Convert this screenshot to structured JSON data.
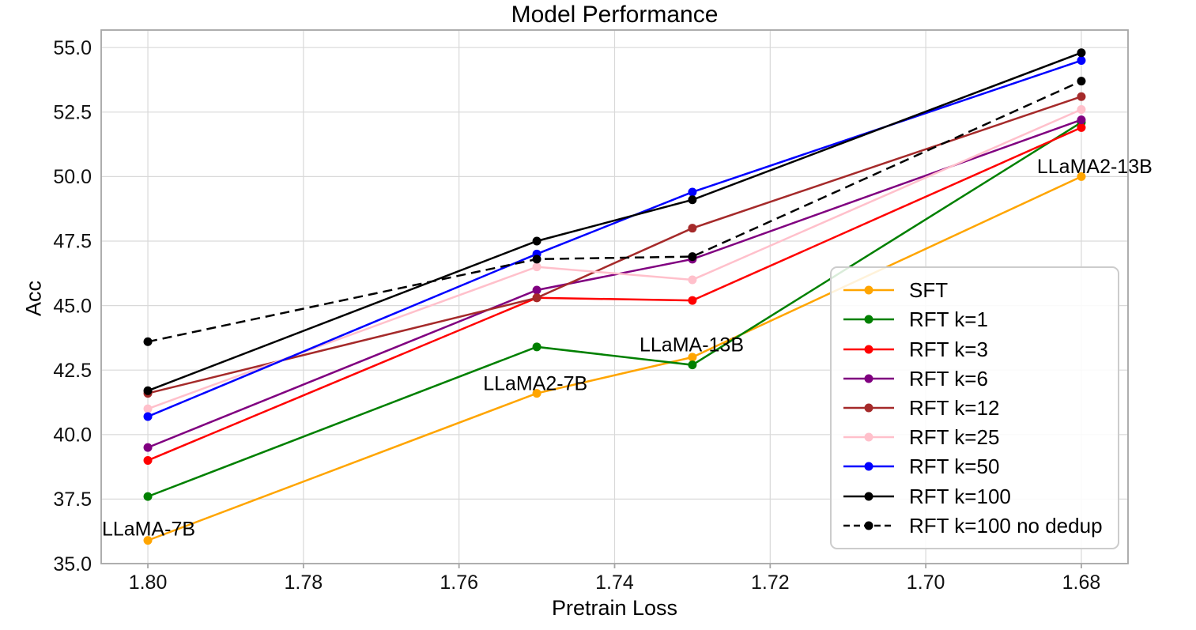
{
  "chart_data": {
    "type": "line",
    "title": "Model Performance",
    "xlabel": "Pretrain Loss",
    "ylabel": "Acc",
    "x": [
      1.8,
      1.75,
      1.73,
      1.68
    ],
    "x_axis_reversed": true,
    "xlim": [
      1.806,
      1.674
    ],
    "ylim": [
      35.0,
      55.68
    ],
    "x_ticks": [
      1.8,
      1.78,
      1.76,
      1.74,
      1.72,
      1.7,
      1.68
    ],
    "x_tick_labels": [
      "1.80",
      "1.78",
      "1.76",
      "1.74",
      "1.72",
      "1.70",
      "1.68"
    ],
    "y_ticks": [
      35.0,
      37.5,
      40.0,
      42.5,
      45.0,
      47.5,
      50.0,
      52.5,
      55.0
    ],
    "y_tick_labels": [
      "35.0",
      "37.5",
      "40.0",
      "42.5",
      "45.0",
      "47.5",
      "50.0",
      "52.5",
      "55.0"
    ],
    "grid": true,
    "legend_position": "center-right",
    "series": [
      {
        "name": "SFT",
        "color": "#FFA500",
        "dash": false,
        "values": [
          35.9,
          41.6,
          43.0,
          50.0
        ]
      },
      {
        "name": "RFT k=1",
        "color": "#008000",
        "dash": false,
        "values": [
          37.6,
          43.4,
          42.7,
          52.1
        ]
      },
      {
        "name": "RFT k=3",
        "color": "#FF0000",
        "dash": false,
        "values": [
          39.0,
          45.3,
          45.2,
          51.9
        ]
      },
      {
        "name": "RFT k=6",
        "color": "#800080",
        "dash": false,
        "values": [
          39.5,
          45.6,
          46.8,
          52.2
        ]
      },
      {
        "name": "RFT k=12",
        "color": "#A52A2A",
        "dash": false,
        "values": [
          41.6,
          45.3,
          48.0,
          53.1
        ]
      },
      {
        "name": "RFT k=25",
        "color": "#FFC0CB",
        "dash": false,
        "values": [
          41.0,
          46.5,
          46.0,
          52.6
        ]
      },
      {
        "name": "RFT k=50",
        "color": "#0000FF",
        "dash": false,
        "values": [
          40.7,
          47.0,
          49.4,
          54.5
        ]
      },
      {
        "name": "RFT k=100",
        "color": "#000000",
        "dash": false,
        "values": [
          41.7,
          47.5,
          49.1,
          54.8
        ]
      },
      {
        "name": "RFT k=100 no dedup",
        "color": "#000000",
        "dash": true,
        "values": [
          43.6,
          46.8,
          46.9,
          53.7
        ]
      }
    ],
    "annotations": [
      {
        "text": "LLaMA-7B",
        "x": 1.8059,
        "y": 36.35
      },
      {
        "text": "LLaMA2-7B",
        "x": 1.7569,
        "y": 42.0
      },
      {
        "text": "LLaMA-13B",
        "x": 1.7368,
        "y": 43.5
      },
      {
        "text": "LLaMA2-13B",
        "x": 1.6857,
        "y": 50.4
      }
    ]
  }
}
